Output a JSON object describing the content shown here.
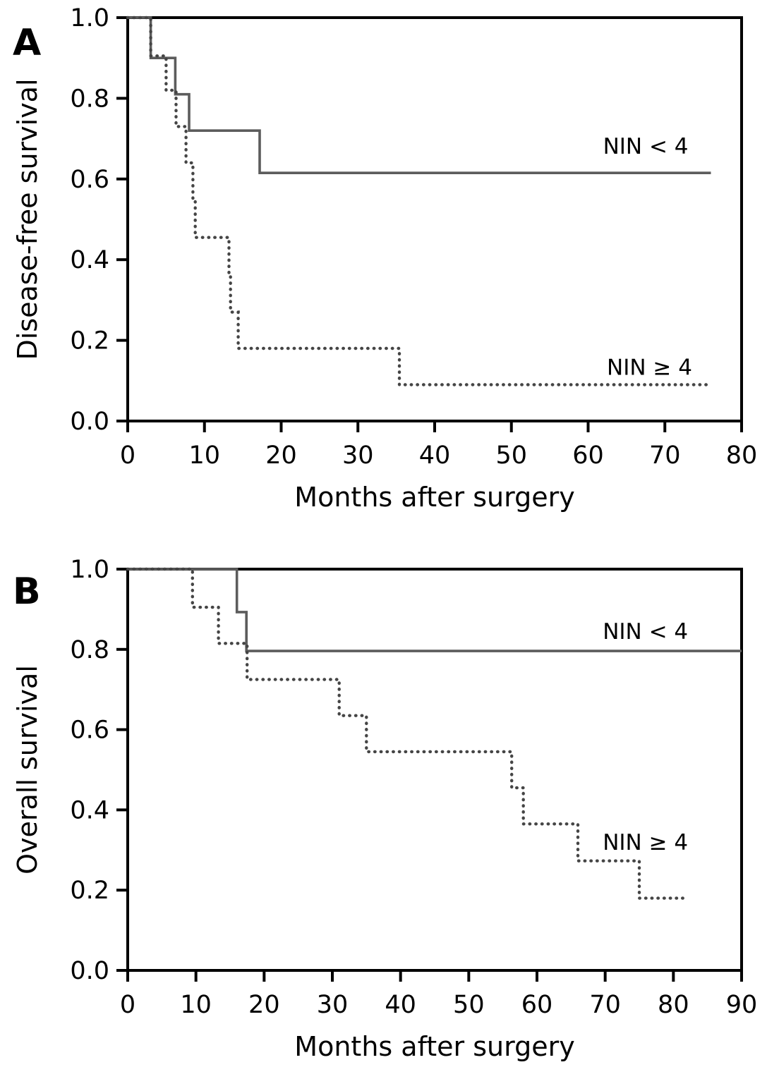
{
  "figure": {
    "description": "Two-panel Kaplan-Meier survival figure comparing NIN < 4 vs NIN ≥ 4 groups",
    "background_color": "#ffffff",
    "axis_color": "#000000",
    "solid_curve_color": "#5c5c5c",
    "dotted_curve_color": "#454545"
  },
  "chart_data": [
    {
      "type": "line",
      "subtype": "kaplan_meier_step",
      "panel_label": "A",
      "title": "",
      "xlabel": "Months after surgery",
      "ylabel": "Disease-free survival",
      "xlim": [
        0,
        80
      ],
      "ylim": [
        0.0,
        1.0
      ],
      "grid": false,
      "legend_position": "inline-annotations",
      "x_ticks": [
        0,
        10,
        20,
        30,
        40,
        50,
        60,
        70,
        80
      ],
      "x_tick_labels": [
        "0",
        "10",
        "20",
        "30",
        "40",
        "50",
        "60",
        "70",
        "80"
      ],
      "y_ticks": [
        1.0,
        0.8,
        0.6,
        0.4,
        0.2,
        0.0
      ],
      "y_tick_labels": [
        "1.0",
        "0.8",
        "0.6",
        "0.4",
        "0.2",
        "0.0"
      ],
      "series": [
        {
          "name": "NIN < 4",
          "line_style": "solid",
          "color": "#5c5c5c",
          "steps": [
            [
              0,
              1.0
            ],
            [
              3,
              0.9
            ],
            [
              6.2,
              0.81
            ],
            [
              8,
              0.72
            ],
            [
              17.2,
              0.615
            ]
          ],
          "end_month": 76
        },
        {
          "name": "NIN ≥ 4",
          "line_style": "dotted",
          "color": "#454545",
          "steps": [
            [
              0,
              1.0
            ],
            [
              3,
              0.905
            ],
            [
              5,
              0.82
            ],
            [
              6.3,
              0.73
            ],
            [
              7.6,
              0.64
            ],
            [
              8.5,
              0.545
            ],
            [
              8.8,
              0.455
            ],
            [
              13.2,
              0.365
            ],
            [
              13.4,
              0.27
            ],
            [
              14.4,
              0.18
            ],
            [
              35.4,
              0.09
            ]
          ],
          "end_month": 76
        }
      ],
      "annotations": [
        {
          "text": "NIN < 4",
          "x_month": 67.5,
          "y_value": 0.682
        },
        {
          "text": "NIN ≥ 4",
          "x_month": 68.0,
          "y_value": 0.134
        }
      ]
    },
    {
      "type": "line",
      "subtype": "kaplan_meier_step",
      "panel_label": "B",
      "title": "",
      "xlabel": "Months after surgery",
      "ylabel": "Overall survival",
      "xlim": [
        0,
        90
      ],
      "ylim": [
        0.0,
        1.0
      ],
      "grid": false,
      "legend_position": "inline-annotations",
      "x_ticks": [
        0,
        10,
        20,
        30,
        40,
        50,
        60,
        70,
        80,
        90
      ],
      "x_tick_labels": [
        "0",
        "10",
        "20",
        "30",
        "40",
        "50",
        "60",
        "70",
        "80",
        "90"
      ],
      "y_ticks": [
        1.0,
        0.8,
        0.6,
        0.4,
        0.2,
        0.0
      ],
      "y_tick_labels": [
        "1.0",
        "0.8",
        "0.6",
        "0.4",
        "0.2",
        "0.0"
      ],
      "series": [
        {
          "name": "NIN < 4",
          "line_style": "solid",
          "color": "#5c5c5c",
          "steps": [
            [
              0,
              1.0
            ],
            [
              16,
              0.893
            ],
            [
              17.4,
              0.796
            ]
          ],
          "end_month": 90
        },
        {
          "name": "NIN ≥ 4",
          "line_style": "dotted",
          "color": "#454545",
          "steps": [
            [
              0,
              1.0
            ],
            [
              9.5,
              0.905
            ],
            [
              13.3,
              0.815
            ],
            [
              17.5,
              0.725
            ],
            [
              31,
              0.635
            ],
            [
              35,
              0.545
            ],
            [
              56.3,
              0.455
            ],
            [
              58,
              0.365
            ],
            [
              66,
              0.273
            ],
            [
              75,
              0.18
            ]
          ],
          "end_month": 81.5
        }
      ],
      "annotations": [
        {
          "text": "NIN < 4",
          "x_month": 75.9,
          "y_value": 0.845
        },
        {
          "text": "NIN ≥ 4",
          "x_month": 75.9,
          "y_value": 0.32
        }
      ]
    }
  ]
}
